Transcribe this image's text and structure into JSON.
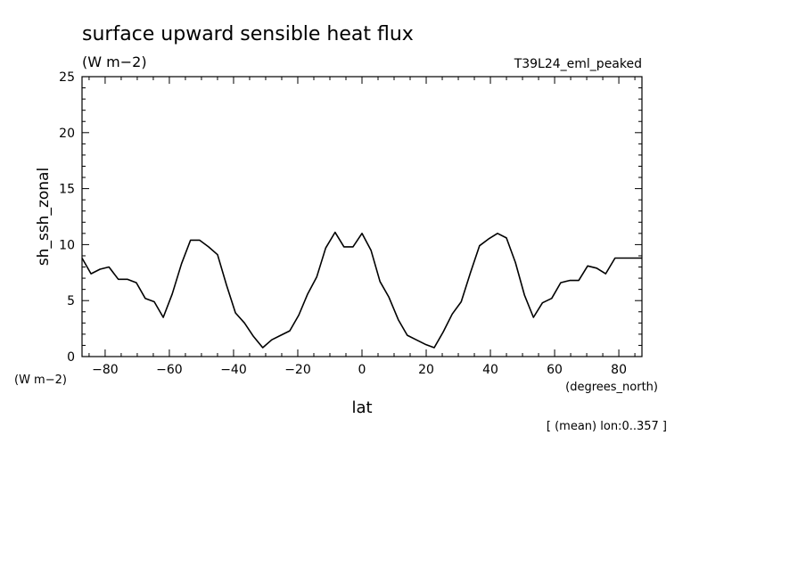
{
  "chart_data": {
    "type": "line",
    "title": "surface upward sensible heat flux",
    "units": "(W m−2)",
    "experiment": "T39L24_eml_peaked",
    "ylabel": "sh_ssh_zonal",
    "ylabel_units": "(W m−2)",
    "xlabel": "lat",
    "xlabel_units": "(degrees_north)",
    "footnote": "[ (mean) lon:0..357 ]",
    "xlim": [
      -87.2,
      87.2
    ],
    "ylim": [
      0,
      25
    ],
    "x_ticks": [
      -80,
      -60,
      -40,
      -20,
      0,
      20,
      40,
      60,
      80
    ],
    "x_tick_labels": [
      "−80",
      "−60",
      "−40",
      "−20",
      "0",
      "20",
      "40",
      "60",
      "80"
    ],
    "y_ticks": [
      0,
      5,
      10,
      15,
      20,
      25
    ],
    "y_tick_labels": [
      "0",
      "5",
      "10",
      "15",
      "20",
      "25"
    ],
    "grid": false,
    "series": [
      {
        "x": [
          -87.2,
          -84.4,
          -81.6,
          -78.8,
          -75.9,
          -73.1,
          -70.3,
          -67.5,
          -64.7,
          -61.9,
          -59.1,
          -56.2,
          -53.4,
          -50.6,
          -47.8,
          -45.0,
          -42.2,
          -39.4,
          -36.6,
          -33.8,
          -30.9,
          -28.1,
          -25.3,
          -22.5,
          -19.7,
          -16.9,
          -14.1,
          -11.3,
          -8.4,
          -5.6,
          -2.8,
          0.0,
          2.8,
          5.6,
          8.4,
          11.3,
          14.1,
          16.9,
          19.7,
          22.5,
          25.3,
          28.1,
          30.9,
          33.8,
          36.6,
          39.4,
          42.2,
          45.0,
          47.8,
          50.6,
          53.4,
          56.2,
          59.1,
          61.9,
          64.7,
          67.5,
          70.3,
          73.1,
          75.9,
          78.8,
          81.6,
          84.4,
          87.2
        ],
        "y": [
          8.8,
          7.4,
          7.8,
          8.0,
          6.9,
          6.9,
          6.6,
          5.2,
          4.9,
          3.5,
          5.6,
          8.3,
          10.4,
          10.4,
          9.8,
          9.1,
          6.4,
          3.9,
          3.0,
          1.8,
          0.8,
          1.5,
          1.9,
          2.3,
          3.7,
          5.6,
          7.1,
          9.7,
          11.1,
          9.8,
          9.8,
          11.0,
          9.5,
          6.7,
          5.3,
          3.3,
          1.9,
          1.5,
          1.1,
          0.8,
          2.2,
          3.8,
          4.9,
          7.5,
          9.9,
          10.5,
          11.0,
          10.6,
          8.4,
          5.5,
          3.5,
          4.8,
          5.2,
          6.6,
          6.8,
          6.8,
          8.1,
          7.9,
          7.4,
          8.8,
          8.8,
          8.8,
          8.8
        ]
      }
    ]
  }
}
